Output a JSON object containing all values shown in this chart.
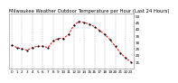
{
  "title": "Milwaukee Weather Outdoor Temperature per Hour (Last 24 Hours)",
  "hours": [
    0,
    1,
    2,
    3,
    4,
    5,
    6,
    7,
    8,
    9,
    10,
    11,
    12,
    13,
    14,
    15,
    16,
    17,
    18,
    19,
    20,
    21,
    22,
    23
  ],
  "temps": [
    28,
    26,
    25,
    24,
    26,
    27,
    27,
    26,
    31,
    33,
    33,
    36,
    43,
    46,
    45,
    44,
    42,
    39,
    36,
    32,
    27,
    22,
    18,
    15
  ],
  "line_color": "#dd0000",
  "marker_color": "#000000",
  "bg_color": "#ffffff",
  "grid_color": "#999999",
  "title_color": "#000000",
  "ylim": [
    10,
    52
  ],
  "yticks": [
    15,
    20,
    25,
    30,
    35,
    40,
    45,
    50
  ],
  "title_fontsize": 3.8,
  "tick_fontsize": 3.0
}
